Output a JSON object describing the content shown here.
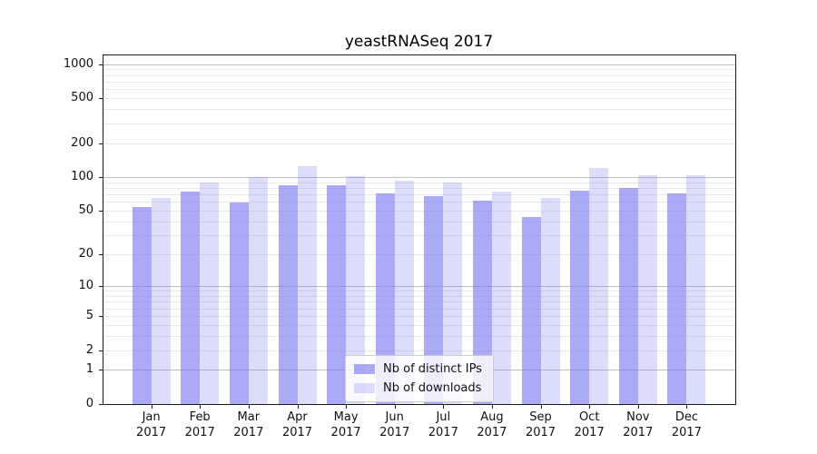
{
  "title": "yeastRNASeq 2017",
  "chart_data": {
    "type": "bar",
    "title": "yeastRNASeq 2017",
    "y_scale": "log10(value+1)",
    "ylim": [
      0,
      1215
    ],
    "y_ticks": [
      0,
      1,
      2,
      5,
      10,
      20,
      50,
      100,
      200,
      500,
      1000
    ],
    "grid_major": [
      1,
      10,
      100,
      1000
    ],
    "grid_minor": [
      2,
      3,
      4,
      5,
      6,
      7,
      8,
      9,
      20,
      30,
      40,
      50,
      60,
      70,
      80,
      90,
      200,
      300,
      400,
      500,
      600,
      700,
      800,
      900
    ],
    "grid": true,
    "legend_position": "lower-center",
    "categories": [
      {
        "month": "Jan",
        "year": "2017"
      },
      {
        "month": "Feb",
        "year": "2017"
      },
      {
        "month": "Mar",
        "year": "2017"
      },
      {
        "month": "Apr",
        "year": "2017"
      },
      {
        "month": "May",
        "year": "2017"
      },
      {
        "month": "Jun",
        "year": "2017"
      },
      {
        "month": "Jul",
        "year": "2017"
      },
      {
        "month": "Aug",
        "year": "2017"
      },
      {
        "month": "Sep",
        "year": "2017"
      },
      {
        "month": "Oct",
        "year": "2017"
      },
      {
        "month": "Nov",
        "year": "2017"
      },
      {
        "month": "Dec",
        "year": "2017"
      }
    ],
    "series": [
      {
        "id": "distinct-ips",
        "name": "Nb of distinct IPs",
        "color": "rgba(120,120,240,0.63)",
        "values": [
          54,
          74,
          59,
          85,
          84,
          71,
          68,
          61,
          44,
          76,
          80,
          72
        ]
      },
      {
        "id": "downloads",
        "name": "Nb of downloads",
        "color": "rgba(120,120,240,0.26)",
        "values": [
          65,
          89,
          100,
          124,
          102,
          92,
          89,
          74,
          65,
          121,
          104,
          104
        ]
      }
    ]
  },
  "colors": {
    "background": "#ffffff",
    "axis": "#1a1a1a",
    "grid_major": "#bfbfbf",
    "grid_minor": "#e9e9e9",
    "bar_base": "#7878f0"
  }
}
